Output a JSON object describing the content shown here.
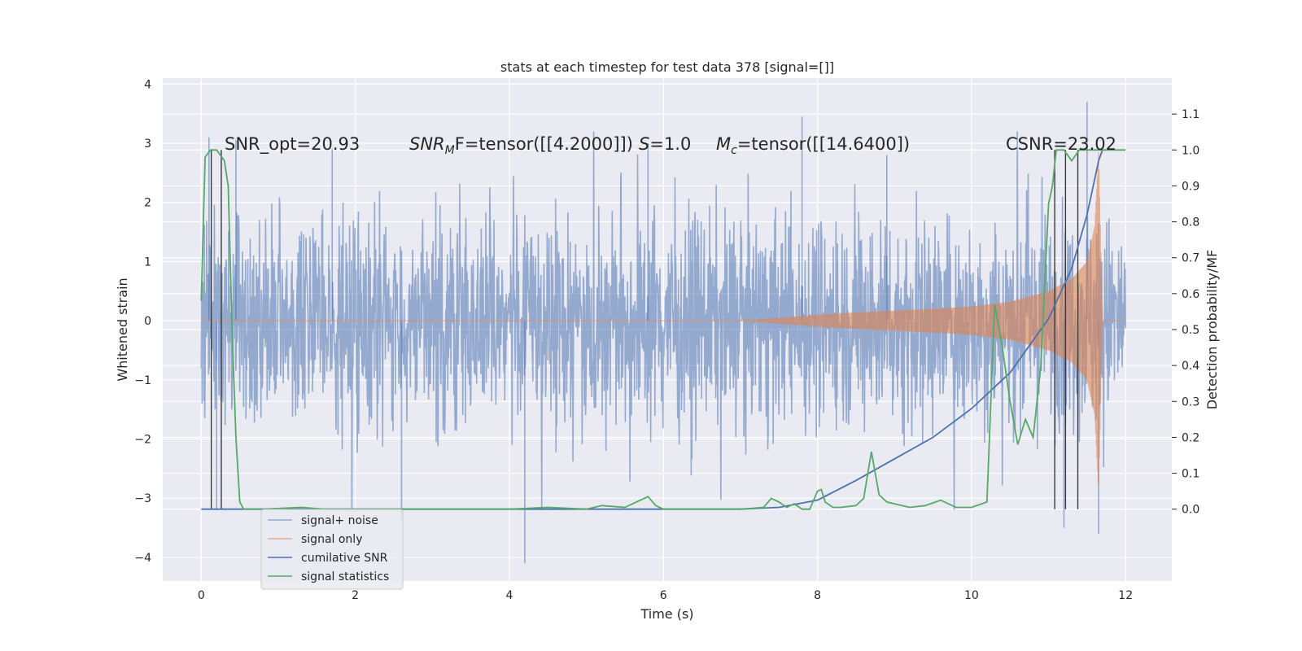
{
  "chart_data": {
    "type": "line",
    "title": "stats at each timestep for test data 378 [signal=[]]",
    "xlabel": "Time (s)",
    "ylabel": "Whitened strain",
    "ylabel_right": "Detection probability/MF",
    "xlim": [
      -0.5,
      12.6
    ],
    "ylim": [
      -4.4,
      4.1
    ],
    "ylim_right": [
      -0.2,
      1.2
    ],
    "x_ticks": [
      0,
      2,
      4,
      6,
      8,
      10,
      12
    ],
    "y_ticks": [
      -4,
      -3,
      -2,
      -1,
      0,
      1,
      2,
      3,
      4
    ],
    "y_ticks_right": [
      0.0,
      0.1,
      0.2,
      0.3,
      0.4,
      0.5,
      0.6,
      0.7,
      0.8,
      0.9,
      1.0,
      1.1
    ],
    "grid": true,
    "legend_position": "lower-left",
    "annotations": {
      "snr_opt": "SNR_opt=20.93",
      "snr_mf_prefix": "SNR",
      "snr_mf_sub": "M",
      "snr_mf_suffix": "F=tensor([[4.2000]])",
      "s_prefix": "S",
      "s_suffix": "=1.0",
      "mc_prefix": "M",
      "mc_sub": "c",
      "mc_suffix": "=tensor([[14.6400])",
      "csnr": "CSNR=23.02"
    },
    "series": [
      {
        "name": "signal+ noise",
        "color": "#4c72b0",
        "axis": "left",
        "x_range": [
          0,
          12
        ],
        "envelope": 1.6,
        "peak_samples": [
          [
            0.1,
            3.1
          ],
          [
            0.2,
            -3.2
          ],
          [
            0.45,
            3.05
          ],
          [
            1.7,
            2.9
          ],
          [
            2.6,
            -3.4
          ],
          [
            4.2,
            -4.1
          ],
          [
            5.8,
            3.0
          ],
          [
            7.8,
            3.45
          ],
          [
            8.9,
            2.8
          ],
          [
            11.2,
            -3.5
          ],
          [
            11.5,
            3.7
          ],
          [
            11.65,
            -3.6
          ]
        ]
      },
      {
        "name": "signal only",
        "color": "#dd8452",
        "axis": "left",
        "x": [
          0,
          7.0,
          7.5,
          8.0,
          8.5,
          9.0,
          9.5,
          10.0,
          10.5,
          11.0,
          11.3,
          11.5,
          11.6,
          11.65,
          11.7,
          12.0
        ],
        "amplitude": [
          0.0,
          0.0,
          0.05,
          0.1,
          0.14,
          0.17,
          0.2,
          0.24,
          0.32,
          0.5,
          0.7,
          1.0,
          1.6,
          2.9,
          0.0,
          0.0
        ]
      },
      {
        "name": "cumilative SNR",
        "color": "#4c72b0",
        "axis": "right",
        "x": [
          0,
          7.0,
          7.5,
          8.0,
          8.5,
          9.0,
          9.5,
          10.0,
          10.5,
          11.0,
          11.3,
          11.5,
          11.65,
          11.7
        ],
        "values": [
          0.0,
          0.0,
          0.005,
          0.025,
          0.08,
          0.14,
          0.2,
          0.28,
          0.38,
          0.53,
          0.67,
          0.82,
          0.97,
          1.0
        ]
      },
      {
        "name": "signal statistics",
        "color": "#55a868",
        "axis": "right",
        "x": [
          0,
          0.05,
          0.12,
          0.2,
          0.3,
          0.35,
          0.4,
          0.45,
          0.5,
          0.55,
          0.6,
          0.8,
          1.3,
          1.6,
          2.0,
          3.0,
          4.0,
          4.5,
          5.0,
          5.2,
          5.5,
          5.8,
          5.9,
          6.0,
          6.5,
          7.0,
          7.3,
          7.4,
          7.5,
          7.6,
          7.7,
          7.8,
          7.9,
          8.0,
          8.05,
          8.1,
          8.2,
          8.3,
          8.5,
          8.6,
          8.7,
          8.8,
          8.9,
          9.0,
          9.2,
          9.4,
          9.6,
          9.8,
          10.0,
          10.2,
          10.3,
          10.4,
          10.5,
          10.6,
          10.7,
          10.8,
          10.9,
          11.0,
          11.05,
          11.1,
          11.2,
          11.3,
          11.4,
          11.5,
          11.6,
          11.7,
          12.0
        ],
        "values": [
          0.58,
          0.98,
          1.0,
          1.0,
          0.97,
          0.9,
          0.5,
          0.2,
          0.02,
          0.0,
          0.0,
          0.0,
          0.005,
          0.0,
          0.0,
          0.0,
          0.0,
          0.005,
          0.0,
          0.01,
          0.005,
          0.035,
          0.01,
          0.0,
          0.0,
          0.0,
          0.005,
          0.03,
          0.02,
          0.005,
          0.015,
          0.0,
          0.0,
          0.05,
          0.055,
          0.02,
          0.005,
          0.005,
          0.01,
          0.03,
          0.16,
          0.04,
          0.02,
          0.015,
          0.005,
          0.01,
          0.025,
          0.005,
          0.005,
          0.02,
          0.57,
          0.45,
          0.3,
          0.18,
          0.25,
          0.2,
          0.4,
          0.85,
          0.9,
          1.0,
          1.0,
          0.97,
          1.0,
          1.0,
          1.0,
          1.0,
          1.0
        ]
      }
    ],
    "vertical_markers": [
      0.13,
      0.26,
      11.08,
      11.22,
      11.38
    ]
  }
}
